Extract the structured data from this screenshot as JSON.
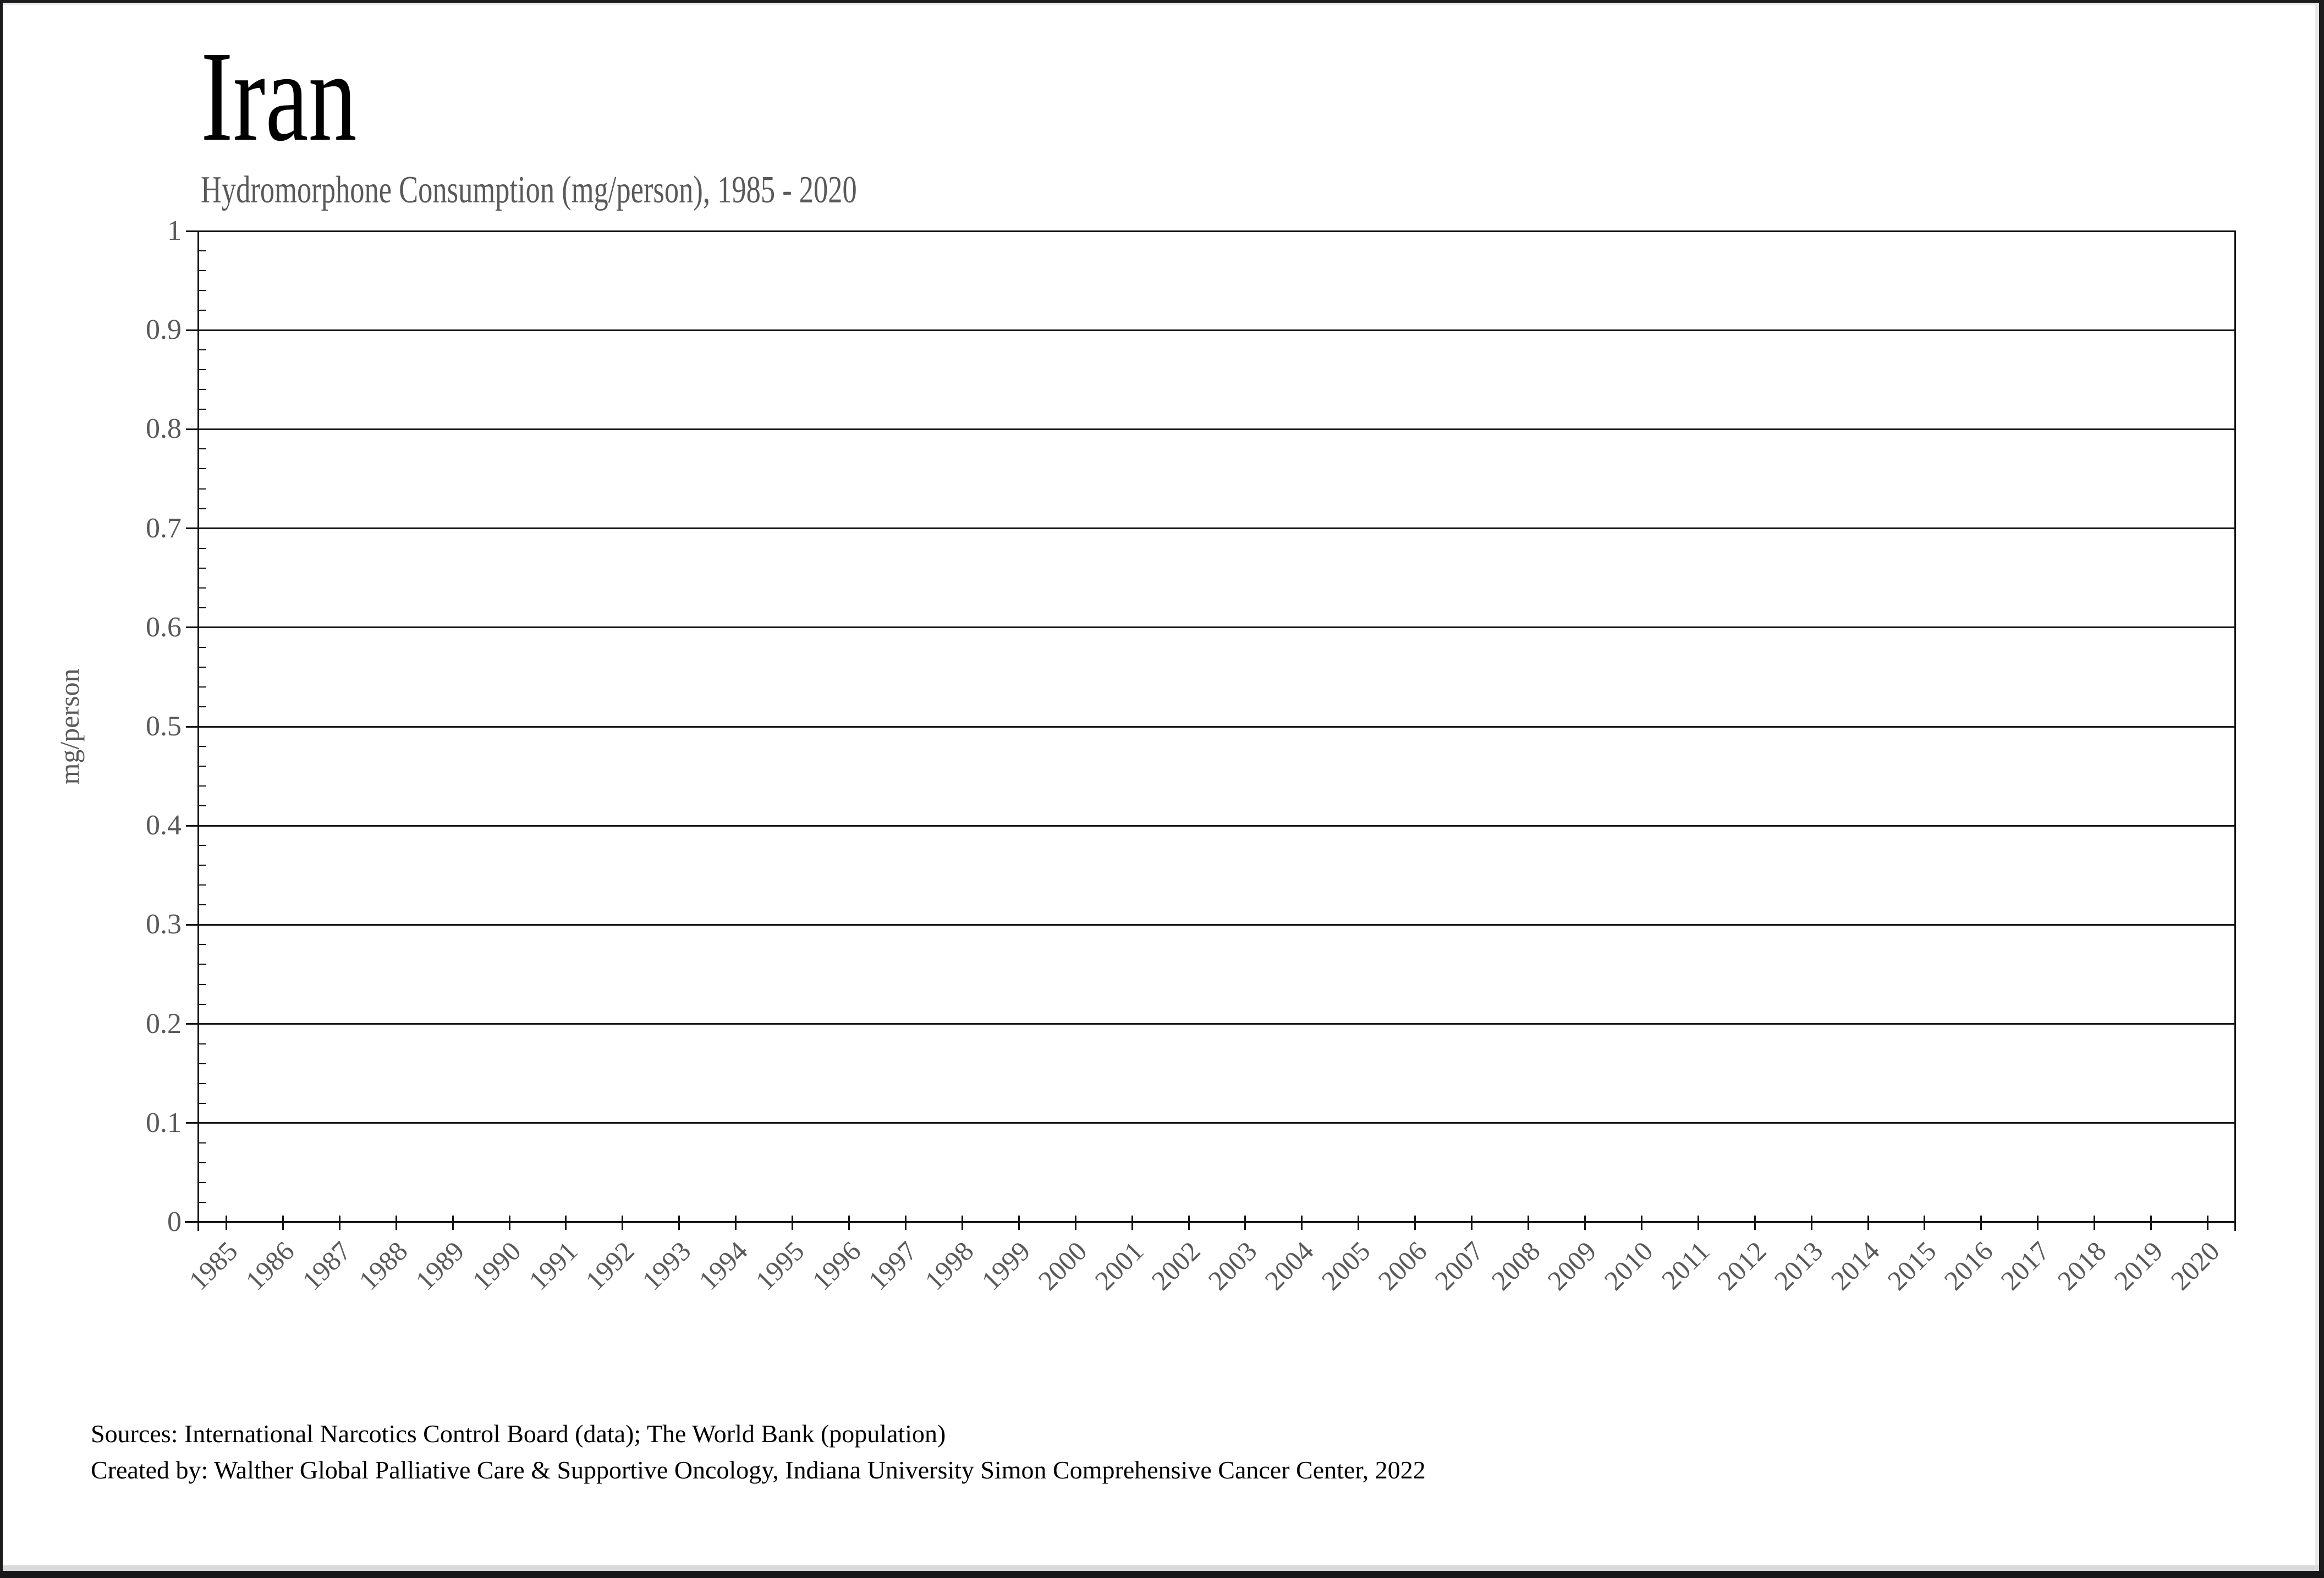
{
  "page": {
    "background": "#ffffff",
    "frame_color": "#1c1c1e",
    "bevel_color": "#d9d9d9"
  },
  "header": {
    "title": "Iran",
    "subtitle": "Hydromorphone Consumption (mg/person), 1985 - 2020",
    "title_color": "#000000",
    "subtitle_color": "#595959"
  },
  "footer": {
    "sources": "Sources: International Narcotics Control Board (data); The World Bank (population)",
    "created": "Created by: Walther Global Palliative Care & Supportive Oncology, Indiana University Simon Comprehensive Cancer Center, 2022"
  },
  "chart_data": {
    "type": "bar",
    "title": "Iran",
    "subtitle": "Hydromorphone Consumption (mg/person), 1985 - 2020",
    "categories": [
      "1985",
      "1986",
      "1987",
      "1988",
      "1989",
      "1990",
      "1991",
      "1992",
      "1993",
      "1994",
      "1995",
      "1996",
      "1997",
      "1998",
      "1999",
      "2000",
      "2001",
      "2002",
      "2003",
      "2004",
      "2005",
      "2006",
      "2007",
      "2008",
      "2009",
      "2010",
      "2011",
      "2012",
      "2013",
      "2014",
      "2015",
      "2016",
      "2017",
      "2018",
      "2019",
      "2020"
    ],
    "values": [
      0,
      0,
      0,
      0,
      0,
      0,
      0,
      0,
      0,
      0,
      0,
      0,
      0,
      0,
      0,
      0,
      0,
      0,
      0,
      0,
      0,
      0,
      0,
      0,
      0,
      0,
      0,
      0,
      0,
      0,
      0,
      0,
      0,
      0,
      0,
      0
    ],
    "xlabel": "",
    "ylabel": "mg/person",
    "ylim": [
      0,
      1
    ],
    "y_tick_labels": [
      "1",
      "0.9",
      "0.8",
      "0.7",
      "0.6",
      "0.5",
      "0.4",
      "0.3",
      "0.2",
      "0.1",
      "0"
    ],
    "y_major_step": 0.1,
    "y_minor_step": 0.02,
    "grid": "horizontal-major",
    "legend_position": "none",
    "axis_color": "#000000",
    "tick_label_color": "#595959"
  }
}
